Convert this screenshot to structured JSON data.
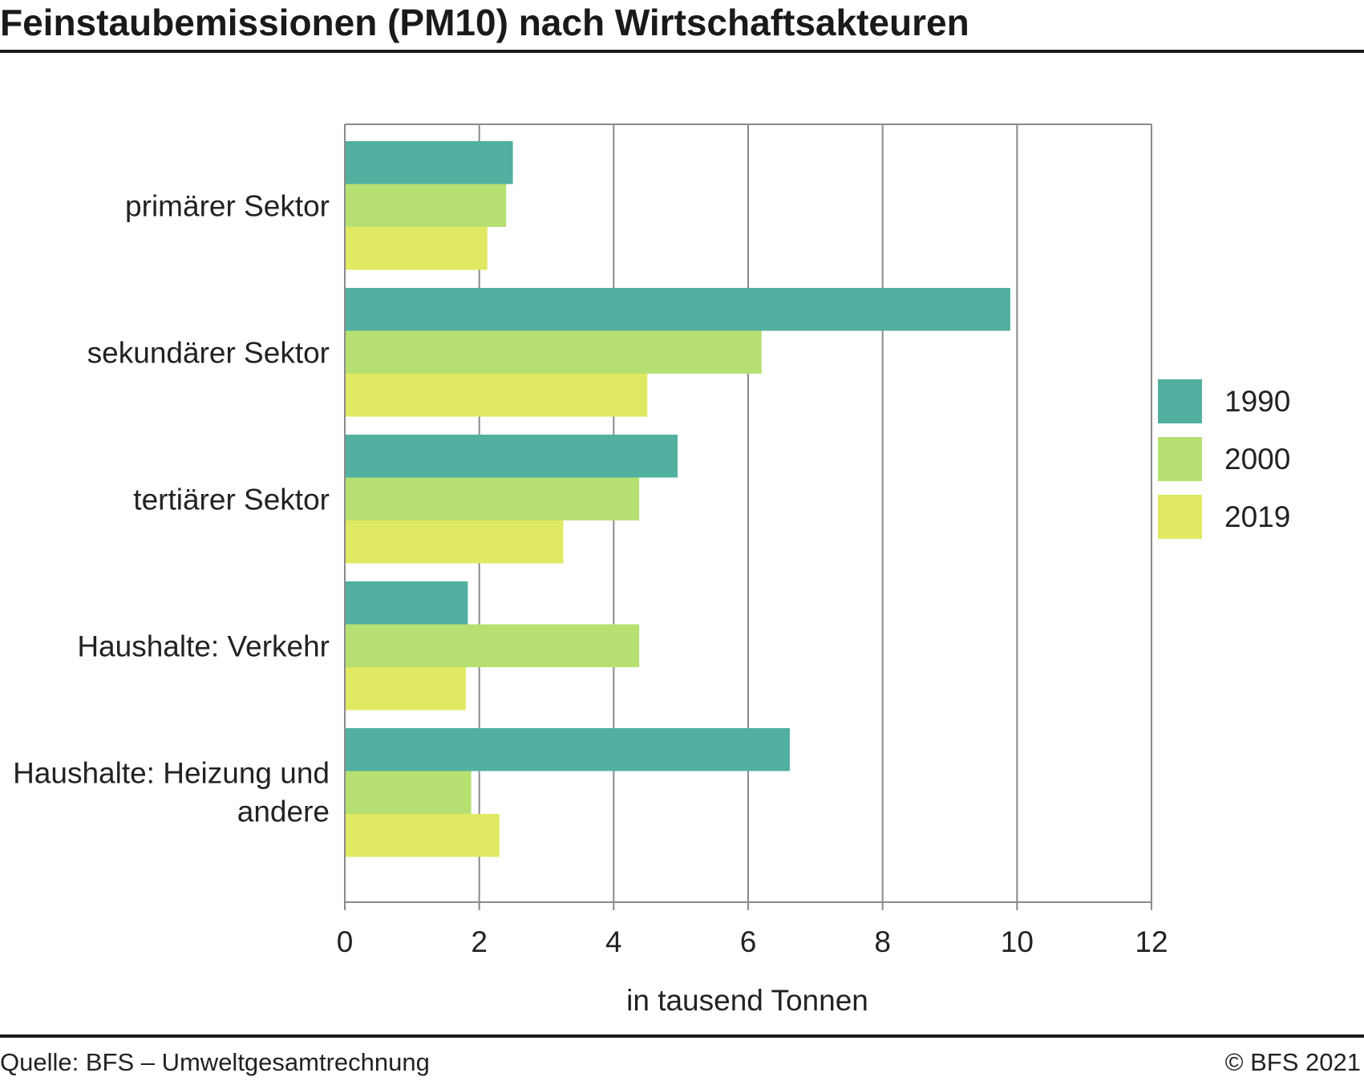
{
  "header": {
    "title": "Feinstaubemissionen (PM10) nach Wirtschaftsakteuren"
  },
  "footer": {
    "source": "Quelle: BFS – Umweltgesamtrechnung",
    "copyright": "© BFS 2021"
  },
  "chart_data": {
    "type": "bar",
    "orientation": "horizontal",
    "categories": [
      "primärer Sektor",
      "sekundärer Sektor",
      "tertiärer Sektor",
      "Haushalte: Verkehr",
      "Haushalte: Heizung und andere"
    ],
    "series": [
      {
        "name": "1990",
        "color": "#52b0a0",
        "values": [
          2.5,
          9.9,
          4.95,
          1.83,
          6.62
        ]
      },
      {
        "name": "2000",
        "color": "#b6e072",
        "values": [
          2.4,
          6.2,
          4.38,
          4.38,
          1.88
        ]
      },
      {
        "name": "2019",
        "color": "#e0e962",
        "values": [
          2.12,
          4.5,
          3.25,
          1.8,
          2.3
        ]
      }
    ],
    "xlabel": "in tausend Tonnen",
    "ylabel": "",
    "xlim": [
      0,
      12
    ],
    "xticks": [
      "0",
      "2",
      "4",
      "6",
      "8",
      "10",
      "12"
    ],
    "grid": true,
    "legend": "right"
  }
}
